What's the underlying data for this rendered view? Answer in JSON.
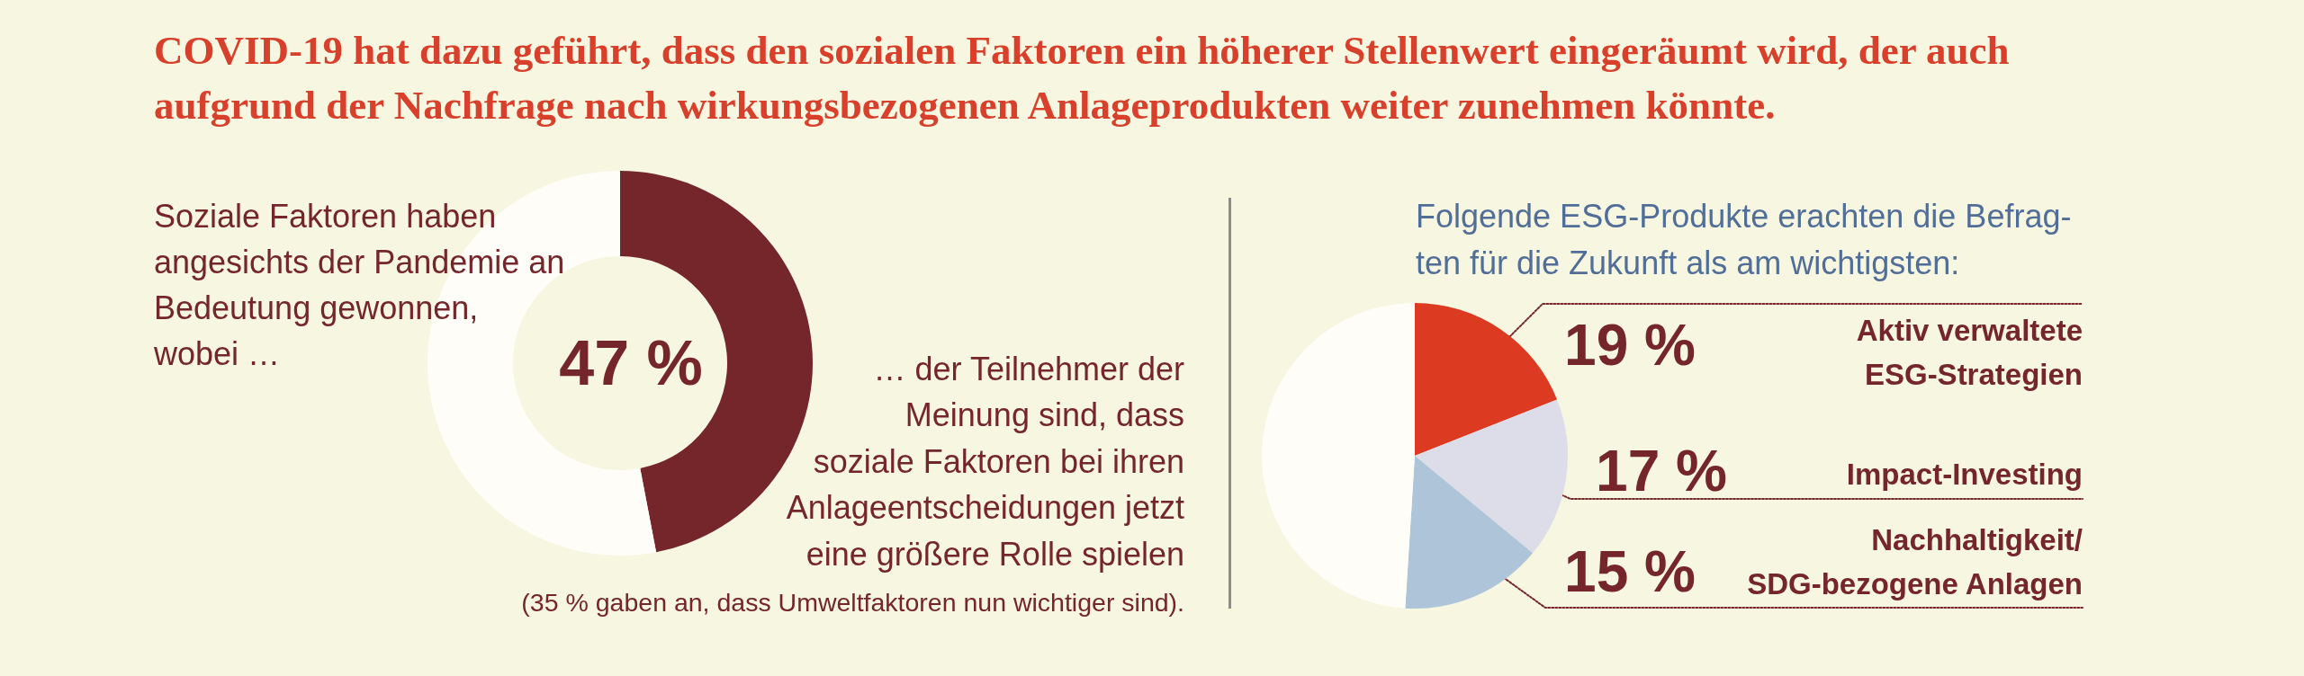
{
  "chart_data": [
    {
      "type": "donut",
      "title": "COVID-19 hat dazu geführt, dass den sozialen Faktoren ein höherer Stellenwert eingeräumt wird, der auch\naufgrund der Nachfrage nach wirkungsbezogenen Anlageprodukten weiter zunehmen könnte.",
      "categories": [
        "… der Teilnehmer der\nMeinung sind, dass\nsoziale Faktoren bei ihren\nAnlageentscheidungen jetzt\neine größere Rolle spielen",
        null
      ],
      "values": [
        47,
        53
      ],
      "colors": [
        "#74262a",
        "#fefdf8"
      ],
      "value_labels": [
        "47 %",
        null
      ],
      "annotations": [
        "Soziale Faktoren haben\nangesichts der Pandemie an\nBedeutung gewonnen,\nwobei …",
        "(35 % gaben an, dass Umweltfaktoren nun wichtiger sind)."
      ]
    },
    {
      "type": "pie",
      "title": "Folgende ESG-Produkte erachten die Befrag-\nten für die Zukunft als am wichtigsten:",
      "categories": [
        "Aktiv verwaltete\nESG-Strategien",
        "Impact-Investing",
        "Nachhaltigkeit/\nSDG-bezogene Anlagen",
        null
      ],
      "values": [
        19,
        17,
        15,
        49
      ],
      "colors": [
        "#dc3b22",
        "#dcdde8",
        "#aec4d8",
        "#fefdf8"
      ],
      "value_labels": [
        "19 %",
        "17 %",
        "15 %",
        null
      ]
    }
  ]
}
